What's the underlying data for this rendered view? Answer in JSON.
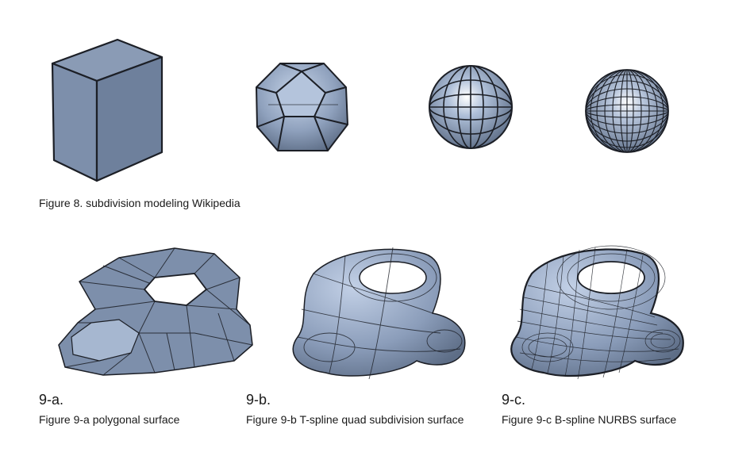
{
  "figure8": {
    "caption": "Figure 8. subdivision modeling Wikipedia"
  },
  "figure9": {
    "a": {
      "label": "9-a.",
      "caption": "Figure 9-a polygonal surface"
    },
    "b": {
      "label": "9-b.",
      "caption": "Figure 9-b T-spline quad subdivision surface"
    },
    "c": {
      "label": "9-c.",
      "caption": "Figure 9-c B-spline NURBS surface"
    }
  },
  "colors": {
    "surface": "#7d8fab",
    "surface_light": "#b4c4dc",
    "surface_dark": "#5d6d86",
    "edge": "#1c1f26"
  }
}
